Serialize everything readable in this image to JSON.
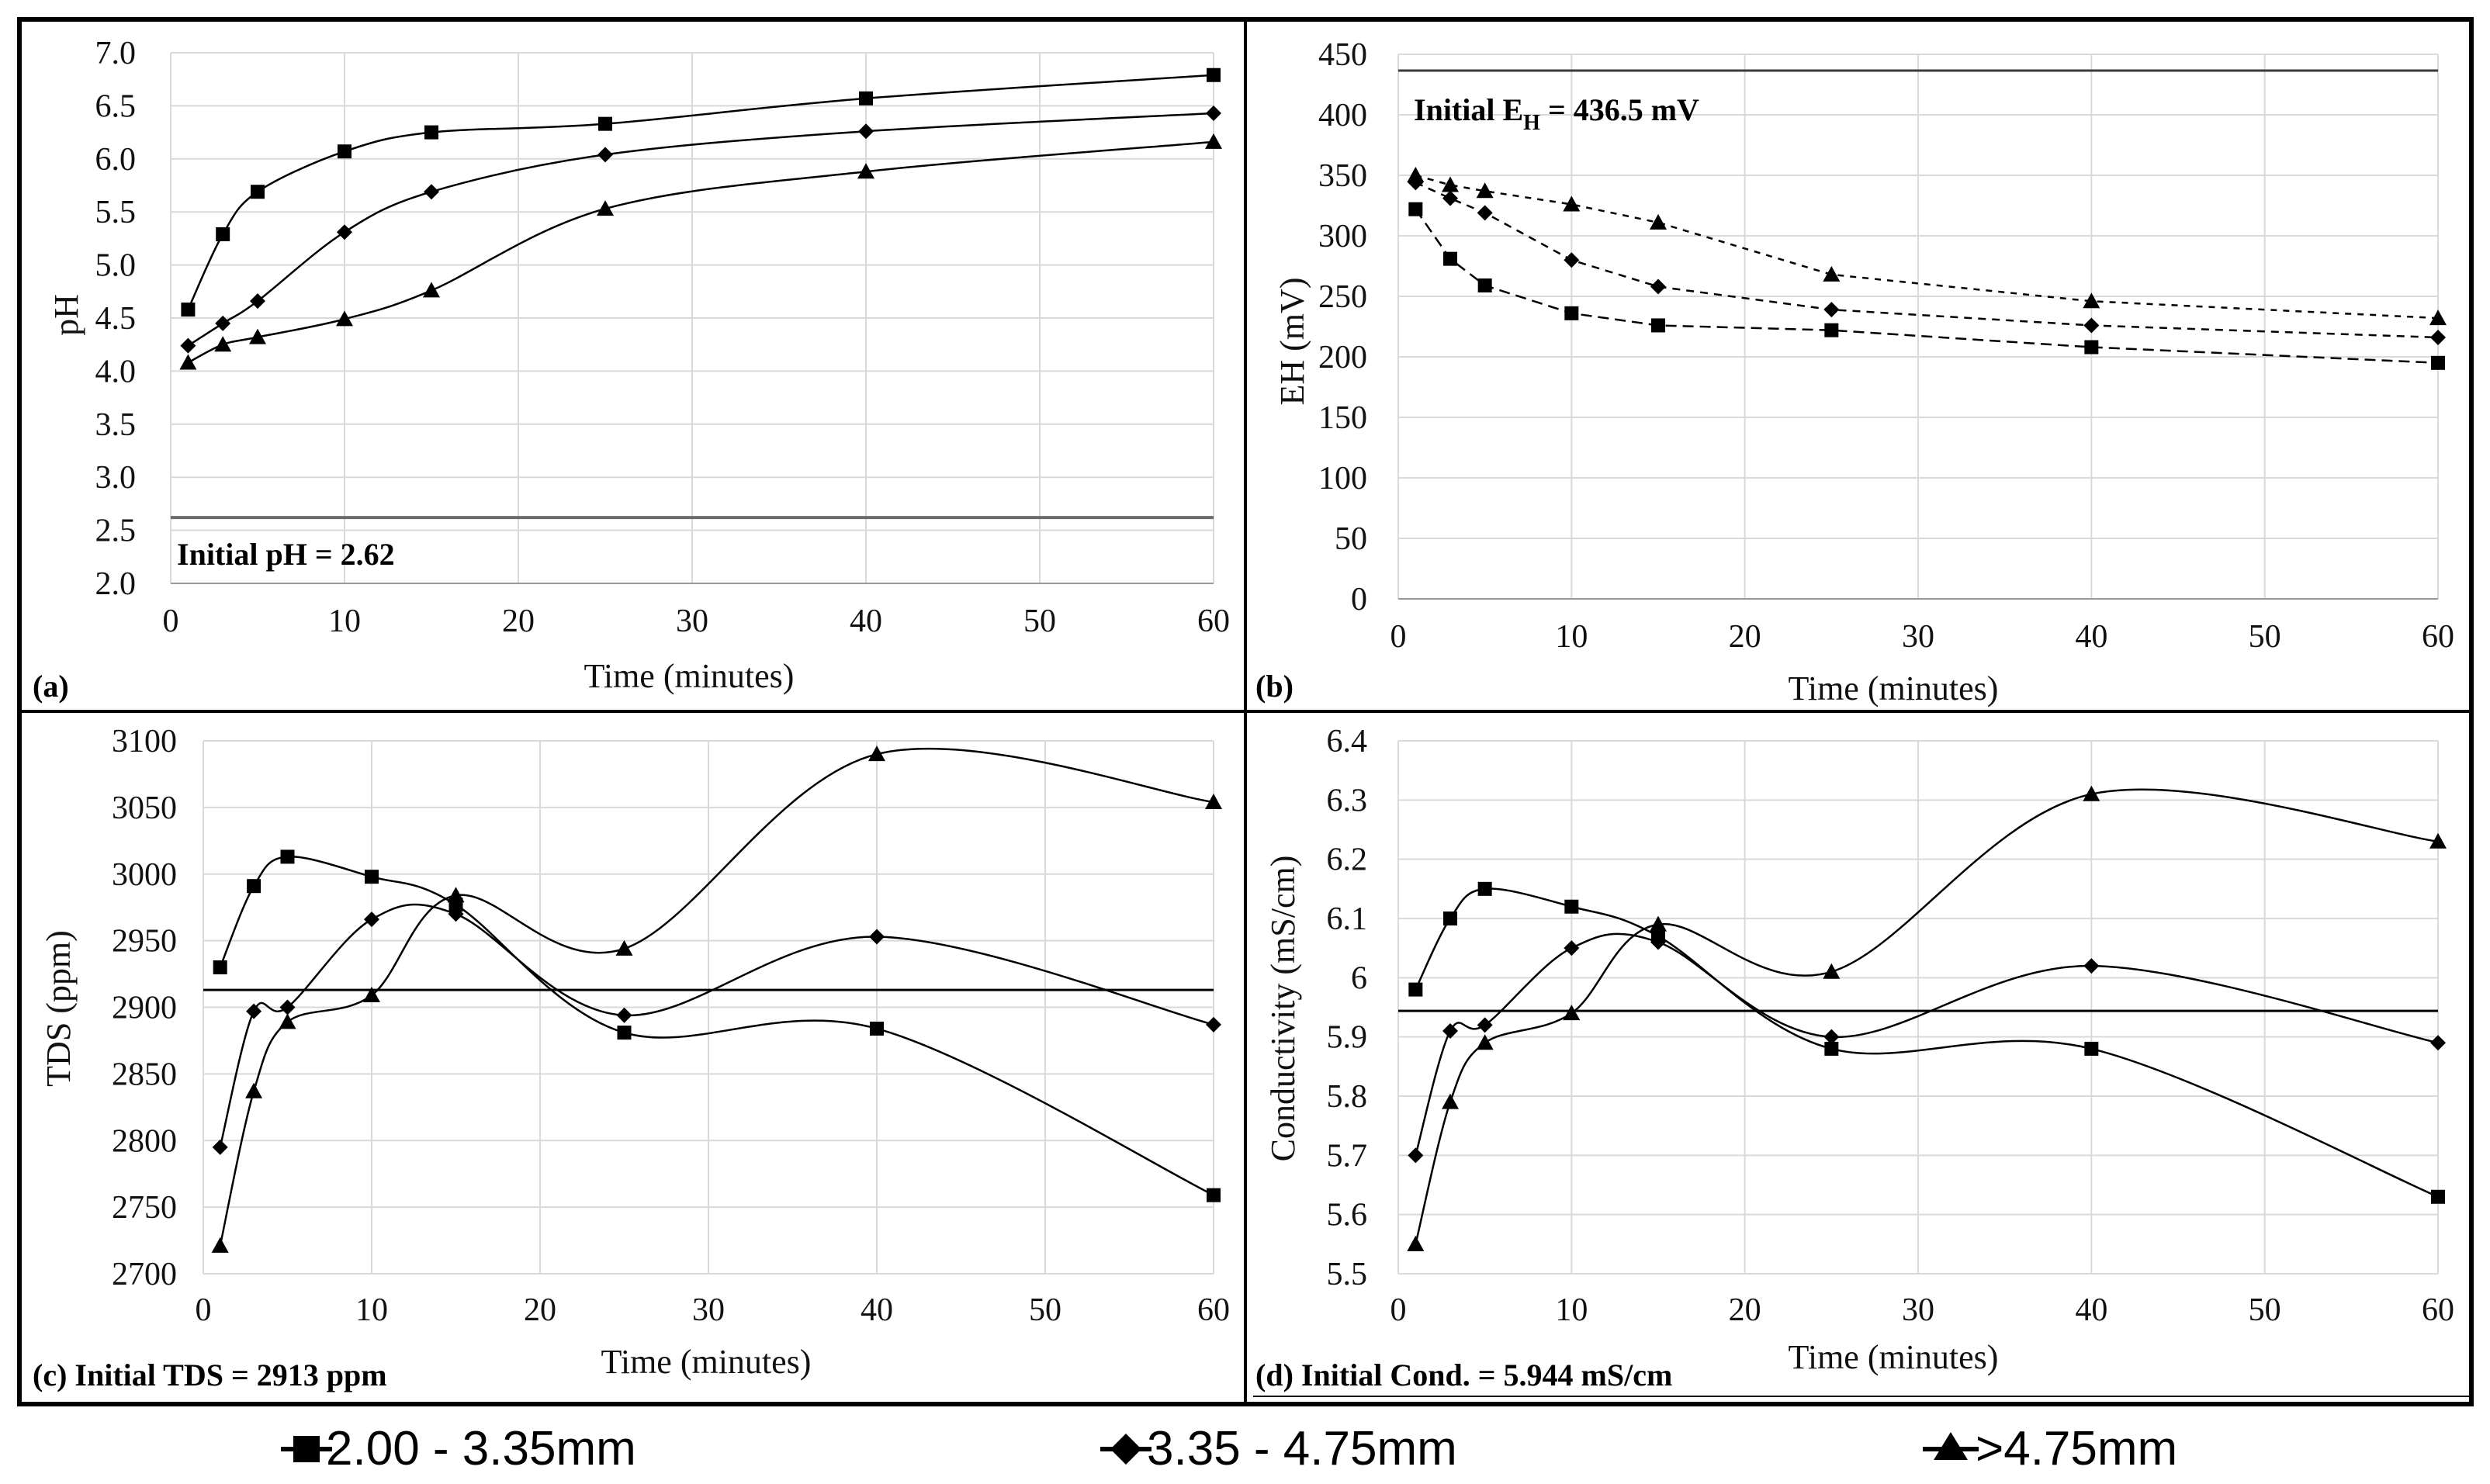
{
  "legend": [
    {
      "label": "2.00 - 3.35mm",
      "marker": "square"
    },
    {
      "label": "3.35 - 4.75mm",
      "marker": "diamond"
    },
    {
      "label": ">4.75mm",
      "marker": "triangle"
    }
  ],
  "chart_data": [
    {
      "type": "line",
      "panel_label": "(a)",
      "title": "",
      "xlabel": "Time (minutes)",
      "ylabel": "pH",
      "xlim": [
        0,
        60
      ],
      "ylim": [
        2.0,
        7.0
      ],
      "xticks": [
        0,
        10,
        20,
        30,
        40,
        50,
        60
      ],
      "xtick_labels": [
        "0",
        "10",
        "20",
        "30",
        "40",
        "50",
        "60"
      ],
      "yticks": [
        2.0,
        2.5,
        3.0,
        3.5,
        4.0,
        4.5,
        5.0,
        5.5,
        6.0,
        6.5,
        7.0
      ],
      "ytick_labels": [
        "2.0",
        "2.5",
        "3.0",
        "3.5",
        "4.0",
        "4.5",
        "5.0",
        "5.5",
        "6.0",
        "6.5",
        "7.0"
      ],
      "grid": true,
      "smooth": true,
      "dashed": false,
      "reference": {
        "value": 2.62,
        "label": "Initial pH = 2.62"
      },
      "x": [
        1,
        3,
        5,
        10,
        15,
        25,
        40,
        60
      ],
      "series": [
        {
          "name": "2.00 - 3.35mm",
          "marker": "square",
          "values": [
            4.58,
            5.29,
            5.69,
            6.07,
            6.25,
            6.33,
            6.57,
            6.79
          ]
        },
        {
          "name": "3.35 - 4.75mm",
          "marker": "diamond",
          "values": [
            4.24,
            4.45,
            4.66,
            5.31,
            5.69,
            6.04,
            6.26,
            6.43
          ]
        },
        {
          "name": ">4.75mm",
          "marker": "triangle",
          "values": [
            4.08,
            4.25,
            4.32,
            4.49,
            4.76,
            5.53,
            5.88,
            6.16
          ]
        }
      ]
    },
    {
      "type": "line",
      "panel_label": "(b)",
      "title": "",
      "xlabel": "Time (minutes)",
      "ylabel": "EH (mV)",
      "xlim": [
        0,
        60
      ],
      "ylim": [
        0,
        450
      ],
      "xticks": [
        0,
        10,
        20,
        30,
        40,
        50,
        60
      ],
      "xtick_labels": [
        "0",
        "10",
        "20",
        "30",
        "40",
        "50",
        "60"
      ],
      "yticks": [
        0,
        50,
        100,
        150,
        200,
        250,
        300,
        350,
        400,
        450
      ],
      "ytick_labels": [
        "0",
        "50",
        "100",
        "150",
        "200",
        "250",
        "300",
        "350",
        "400",
        "450"
      ],
      "grid": true,
      "smooth": false,
      "dashed": true,
      "reference": {
        "value": 436.5,
        "label_main": "Initial E",
        "label_sub": "H",
        "label_suffix": " = 436.5 mV"
      },
      "x": [
        1,
        3,
        5,
        10,
        15,
        25,
        40,
        60
      ],
      "series": [
        {
          "name": "2.00 - 3.35mm",
          "marker": "square",
          "values": [
            322,
            281,
            259,
            236,
            226,
            222,
            208,
            195
          ]
        },
        {
          "name": "3.35 - 4.75mm",
          "marker": "diamond",
          "values": [
            344,
            331,
            319,
            280,
            258,
            239,
            226,
            216
          ]
        },
        {
          "name": ">4.75mm",
          "marker": "triangle",
          "values": [
            350,
            342,
            337,
            326,
            311,
            268,
            246,
            232
          ]
        }
      ]
    },
    {
      "type": "line",
      "panel_label": "(c)",
      "title": "",
      "xlabel": "Time (minutes)",
      "ylabel": "TDS (ppm)",
      "xlim": [
        0,
        60
      ],
      "ylim": [
        2700,
        3100
      ],
      "xticks": [
        0,
        10,
        20,
        30,
        40,
        50,
        60
      ],
      "xtick_labels": [
        "0",
        "10",
        "20",
        "30",
        "40",
        "50",
        "60"
      ],
      "yticks": [
        2700,
        2750,
        2800,
        2850,
        2900,
        2950,
        3000,
        3050,
        3100
      ],
      "ytick_labels": [
        "2700",
        "2750",
        "2800",
        "2850",
        "2900",
        "2950",
        "3000",
        "3050",
        "3100"
      ],
      "grid": true,
      "smooth": true,
      "dashed": false,
      "reference": {
        "value": 2913,
        "label": "(c) Initial TDS = 2913 ppm"
      },
      "x": [
        1,
        3,
        5,
        10,
        15,
        25,
        40,
        60
      ],
      "series": [
        {
          "name": "2.00 - 3.35mm",
          "marker": "square",
          "values": [
            2930,
            2991,
            3013,
            2998,
            2977,
            2881,
            2884,
            2759
          ]
        },
        {
          "name": "3.35 - 4.75mm",
          "marker": "diamond",
          "values": [
            2795,
            2897,
            2900,
            2966,
            2970,
            2894,
            2953,
            2887
          ]
        },
        {
          "name": ">4.75mm",
          "marker": "triangle",
          "values": [
            2721,
            2837,
            2889,
            2909,
            2984,
            2944,
            3090,
            3054
          ]
        }
      ]
    },
    {
      "type": "line",
      "panel_label": "(d)",
      "title": "",
      "xlabel": "Time (minutes)",
      "ylabel": "Conductivity (mS/cm)",
      "xlim": [
        0,
        60
      ],
      "ylim": [
        5.5,
        6.4
      ],
      "xticks": [
        0,
        10,
        20,
        30,
        40,
        50,
        60
      ],
      "xtick_labels": [
        "0",
        "10",
        "20",
        "30",
        "40",
        "50",
        "60"
      ],
      "yticks": [
        5.5,
        5.6,
        5.7,
        5.8,
        5.9,
        6.0,
        6.1,
        6.2,
        6.3,
        6.4
      ],
      "ytick_labels": [
        "5.5",
        "5.6",
        "5.7",
        "5.8",
        "5.9",
        "6",
        "6.1",
        "6.2",
        "6.3",
        "6.4"
      ],
      "grid": true,
      "smooth": true,
      "dashed": false,
      "reference": {
        "value": 5.944,
        "label": "(d) Initial Cond. = 5.944 mS/cm"
      },
      "x": [
        1,
        3,
        5,
        10,
        15,
        25,
        40,
        60
      ],
      "series": [
        {
          "name": "2.00 - 3.35mm",
          "marker": "square",
          "values": [
            5.98,
            6.1,
            6.15,
            6.12,
            6.07,
            5.88,
            5.88,
            5.63
          ]
        },
        {
          "name": "3.35 - 4.75mm",
          "marker": "diamond",
          "values": [
            5.7,
            5.91,
            5.92,
            6.05,
            6.06,
            5.9,
            6.02,
            5.89
          ]
        },
        {
          "name": ">4.75mm",
          "marker": "triangle",
          "values": [
            5.55,
            5.79,
            5.89,
            5.94,
            6.09,
            6.01,
            6.31,
            6.23
          ]
        }
      ]
    }
  ]
}
